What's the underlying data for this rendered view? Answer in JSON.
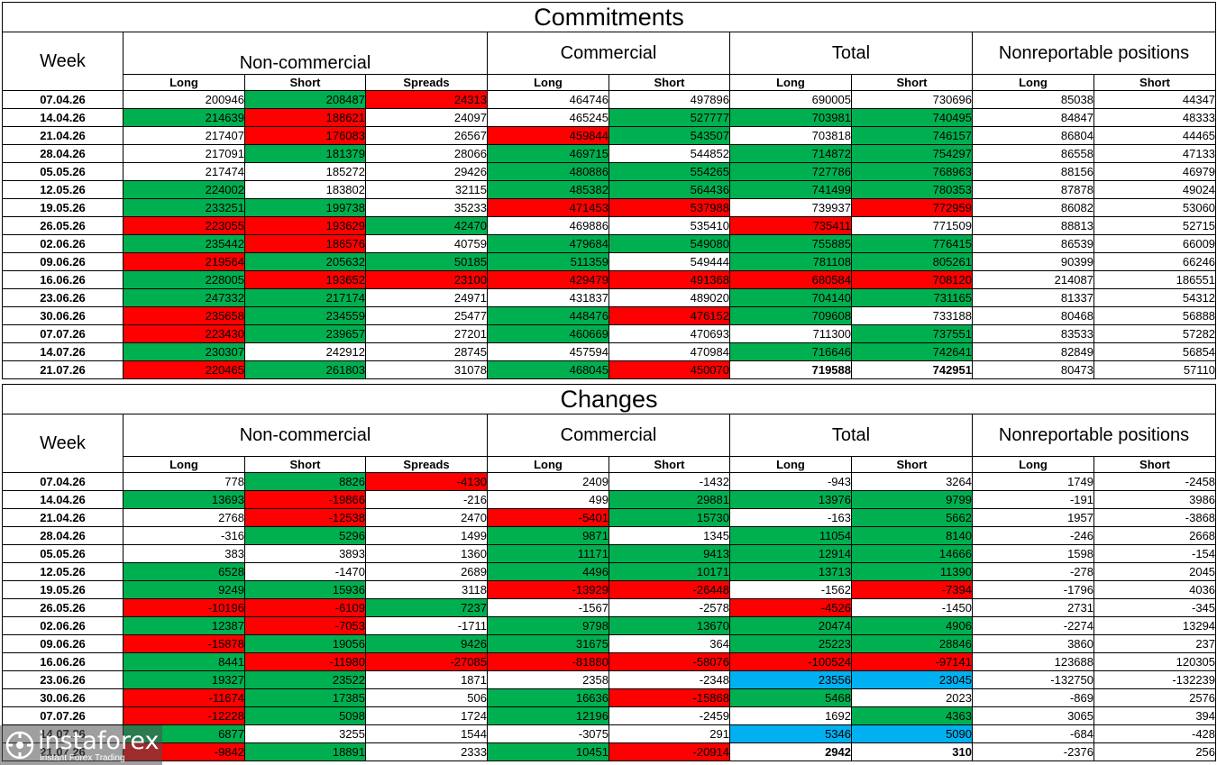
{
  "colors": {
    "green": "#00b050",
    "red": "#ff0000",
    "cyan": "#00b0f0"
  },
  "headers": {
    "week": "Week",
    "groups": [
      "Non-commercial",
      "Commercial",
      "Total",
      "Nonreportable positions"
    ],
    "sub": [
      "Long",
      "Short",
      "Spreads",
      "Long",
      "Short",
      "Long",
      "Short",
      "Long",
      "Short"
    ]
  },
  "logo": {
    "icon": "instaforex-logo-icon",
    "name": "instaforex",
    "tagline": "Instant Forex Trading"
  },
  "commitments": {
    "title": "Commitments",
    "rows": [
      {
        "week": "07.04.26",
        "values": [
          "200946",
          "208487",
          "24313",
          "464746",
          "497896",
          "690005",
          "730696",
          "85038",
          "44347"
        ],
        "colors": [
          "",
          "g",
          "r",
          "",
          "",
          "",
          "",
          "",
          ""
        ]
      },
      {
        "week": "14.04.26",
        "values": [
          "214639",
          "188621",
          "24097",
          "465245",
          "527777",
          "703981",
          "740495",
          "84847",
          "48333"
        ],
        "colors": [
          "g",
          "r",
          "",
          "",
          "g",
          "g",
          "g",
          "",
          ""
        ]
      },
      {
        "week": "21.04.26",
        "values": [
          "217407",
          "176083",
          "26567",
          "459844",
          "543507",
          "703818",
          "746157",
          "86804",
          "44465"
        ],
        "colors": [
          "",
          "r",
          "",
          "r",
          "g",
          "",
          "g",
          "",
          ""
        ]
      },
      {
        "week": "28.04.26",
        "values": [
          "217091",
          "181379",
          "28066",
          "469715",
          "544852",
          "714872",
          "754297",
          "86558",
          "47133"
        ],
        "colors": [
          "",
          "g",
          "",
          "g",
          "",
          "g",
          "g",
          "",
          ""
        ]
      },
      {
        "week": "05.05.26",
        "values": [
          "217474",
          "185272",
          "29426",
          "480886",
          "554265",
          "727786",
          "768963",
          "88156",
          "46979"
        ],
        "colors": [
          "",
          "",
          "",
          "g",
          "g",
          "g",
          "g",
          "",
          ""
        ]
      },
      {
        "week": "12.05.26",
        "values": [
          "224002",
          "183802",
          "32115",
          "485382",
          "564436",
          "741499",
          "780353",
          "87878",
          "49024"
        ],
        "colors": [
          "g",
          "",
          "",
          "g",
          "g",
          "g",
          "g",
          "",
          ""
        ]
      },
      {
        "week": "19.05.26",
        "values": [
          "233251",
          "199738",
          "35233",
          "471453",
          "537988",
          "739937",
          "772959",
          "86082",
          "53060"
        ],
        "colors": [
          "g",
          "g",
          "",
          "r",
          "r",
          "",
          "r",
          "",
          ""
        ]
      },
      {
        "week": "26.05.26",
        "values": [
          "223055",
          "193629",
          "42470",
          "469886",
          "535410",
          "735411",
          "771509",
          "88813",
          "52715"
        ],
        "colors": [
          "r",
          "r",
          "g",
          "",
          "",
          "r",
          "",
          "",
          ""
        ]
      },
      {
        "week": "02.06.26",
        "values": [
          "235442",
          "186576",
          "40759",
          "479684",
          "549080",
          "755885",
          "776415",
          "86539",
          "66009"
        ],
        "colors": [
          "g",
          "r",
          "",
          "g",
          "g",
          "g",
          "g",
          "",
          ""
        ]
      },
      {
        "week": "09.06.26",
        "values": [
          "219564",
          "205632",
          "50185",
          "511359",
          "549444",
          "781108",
          "805261",
          "90399",
          "66246"
        ],
        "colors": [
          "r",
          "g",
          "g",
          "g",
          "",
          "g",
          "g",
          "",
          ""
        ]
      },
      {
        "week": "16.06.26",
        "values": [
          "228005",
          "193652",
          "23100",
          "429479",
          "491368",
          "680584",
          "708120",
          "214087",
          "186551"
        ],
        "colors": [
          "g",
          "r",
          "r",
          "r",
          "r",
          "r",
          "r",
          "",
          ""
        ]
      },
      {
        "week": "23.06.26",
        "values": [
          "247332",
          "217174",
          "24971",
          "431837",
          "489020",
          "704140",
          "731165",
          "81337",
          "54312"
        ],
        "colors": [
          "g",
          "g",
          "",
          "",
          "",
          "g",
          "g",
          "",
          ""
        ]
      },
      {
        "week": "30.06.26",
        "values": [
          "235658",
          "234559",
          "25477",
          "448476",
          "476152",
          "709608",
          "733188",
          "80468",
          "56888"
        ],
        "colors": [
          "r",
          "g",
          "",
          "g",
          "r",
          "g",
          "",
          "",
          ""
        ]
      },
      {
        "week": "07.07.26",
        "values": [
          "223430",
          "239657",
          "27201",
          "460669",
          "470693",
          "711300",
          "737551",
          "83533",
          "57282"
        ],
        "colors": [
          "r",
          "g",
          "",
          "g",
          "",
          "",
          "g",
          "",
          ""
        ]
      },
      {
        "week": "14.07.26",
        "values": [
          "230307",
          "242912",
          "28745",
          "457594",
          "470984",
          "716646",
          "742641",
          "82849",
          "56854"
        ],
        "colors": [
          "g",
          "",
          "",
          "",
          "",
          "g",
          "g",
          "",
          ""
        ]
      },
      {
        "week": "21.07.26",
        "values": [
          "220465",
          "261803",
          "31078",
          "468045",
          "450070",
          "719588",
          "742951",
          "80473",
          "57110"
        ],
        "colors": [
          "r",
          "g",
          "",
          "g",
          "r",
          "",
          "",
          "",
          ""
        ],
        "bold": [
          false,
          false,
          false,
          false,
          false,
          true,
          true,
          false,
          false
        ]
      }
    ]
  },
  "changes": {
    "title": "Changes",
    "rows": [
      {
        "week": "07.04.26",
        "values": [
          "778",
          "8826",
          "-4130",
          "2409",
          "-1432",
          "-943",
          "3264",
          "1749",
          "-2458"
        ],
        "colors": [
          "",
          "g",
          "r",
          "",
          "",
          "",
          "",
          "",
          ""
        ]
      },
      {
        "week": "14.04.26",
        "values": [
          "13693",
          "-19866",
          "-216",
          "499",
          "29881",
          "13976",
          "9799",
          "-191",
          "3986"
        ],
        "colors": [
          "g",
          "r",
          "",
          "",
          "g",
          "g",
          "g",
          "",
          ""
        ]
      },
      {
        "week": "21.04.26",
        "values": [
          "2768",
          "-12538",
          "2470",
          "-5401",
          "15730",
          "-163",
          "5662",
          "1957",
          "-3868"
        ],
        "colors": [
          "",
          "r",
          "",
          "r",
          "g",
          "",
          "g",
          "",
          ""
        ]
      },
      {
        "week": "28.04.26",
        "values": [
          "-316",
          "5296",
          "1499",
          "9871",
          "1345",
          "11054",
          "8140",
          "-246",
          "2668"
        ],
        "colors": [
          "",
          "g",
          "",
          "g",
          "",
          "g",
          "g",
          "",
          ""
        ]
      },
      {
        "week": "05.05.26",
        "values": [
          "383",
          "3893",
          "1360",
          "11171",
          "9413",
          "12914",
          "14666",
          "1598",
          "-154"
        ],
        "colors": [
          "",
          "",
          "",
          "g",
          "g",
          "g",
          "g",
          "",
          ""
        ]
      },
      {
        "week": "12.05.26",
        "values": [
          "6528",
          "-1470",
          "2689",
          "4496",
          "10171",
          "13713",
          "11390",
          "-278",
          "2045"
        ],
        "colors": [
          "g",
          "",
          "",
          "g",
          "g",
          "g",
          "g",
          "",
          ""
        ]
      },
      {
        "week": "19.05.26",
        "values": [
          "9249",
          "15936",
          "3118",
          "-13929",
          "-26448",
          "-1562",
          "-7394",
          "-1796",
          "4036"
        ],
        "colors": [
          "g",
          "g",
          "",
          "r",
          "r",
          "",
          "r",
          "",
          ""
        ]
      },
      {
        "week": "26.05.26",
        "values": [
          "-10196",
          "-6109",
          "7237",
          "-1567",
          "-2578",
          "-4526",
          "-1450",
          "2731",
          "-345"
        ],
        "colors": [
          "r",
          "r",
          "g",
          "",
          "",
          "r",
          "",
          "",
          ""
        ]
      },
      {
        "week": "02.06.26",
        "values": [
          "12387",
          "-7053",
          "-1711",
          "9798",
          "13670",
          "20474",
          "4906",
          "-2274",
          "13294"
        ],
        "colors": [
          "g",
          "r",
          "",
          "g",
          "g",
          "g",
          "g",
          "",
          ""
        ]
      },
      {
        "week": "09.06.26",
        "values": [
          "-15878",
          "19056",
          "9426",
          "31675",
          "364",
          "25223",
          "28846",
          "3860",
          "237"
        ],
        "colors": [
          "r",
          "g",
          "g",
          "g",
          "",
          "g",
          "g",
          "",
          ""
        ]
      },
      {
        "week": "16.06.26",
        "values": [
          "8441",
          "-11980",
          "-27085",
          "-81880",
          "-58076",
          "-100524",
          "-97141",
          "123688",
          "120305"
        ],
        "colors": [
          "g",
          "r",
          "r",
          "r",
          "r",
          "r",
          "r",
          "",
          ""
        ]
      },
      {
        "week": "23.06.26",
        "values": [
          "19327",
          "23522",
          "1871",
          "2358",
          "-2348",
          "23556",
          "23045",
          "-132750",
          "-132239"
        ],
        "colors": [
          "g",
          "g",
          "",
          "",
          "",
          "c",
          "c",
          "",
          ""
        ]
      },
      {
        "week": "30.06.26",
        "values": [
          "-11674",
          "17385",
          "506",
          "16636",
          "-15868",
          "5468",
          "2023",
          "-869",
          "2576"
        ],
        "colors": [
          "r",
          "g",
          "",
          "g",
          "r",
          "g",
          "",
          "",
          ""
        ]
      },
      {
        "week": "07.07.26",
        "values": [
          "-12228",
          "5098",
          "1724",
          "12196",
          "-2459",
          "1692",
          "4363",
          "3065",
          "394"
        ],
        "colors": [
          "r",
          "g",
          "",
          "g",
          "",
          "",
          "g",
          "",
          ""
        ]
      },
      {
        "week": "14.07.26",
        "values": [
          "6877",
          "3255",
          "1544",
          "-3075",
          "291",
          "5346",
          "5090",
          "-684",
          "-428"
        ],
        "colors": [
          "g",
          "",
          "",
          "",
          "",
          "c",
          "c",
          "",
          ""
        ]
      },
      {
        "week": "21.07.26",
        "values": [
          "-9842",
          "18891",
          "2333",
          "10451",
          "-20914",
          "2942",
          "310",
          "-2376",
          "256"
        ],
        "colors": [
          "r",
          "g",
          "",
          "g",
          "r",
          "",
          "",
          "",
          ""
        ],
        "bold": [
          false,
          false,
          false,
          false,
          false,
          true,
          true,
          false,
          false
        ]
      }
    ]
  }
}
